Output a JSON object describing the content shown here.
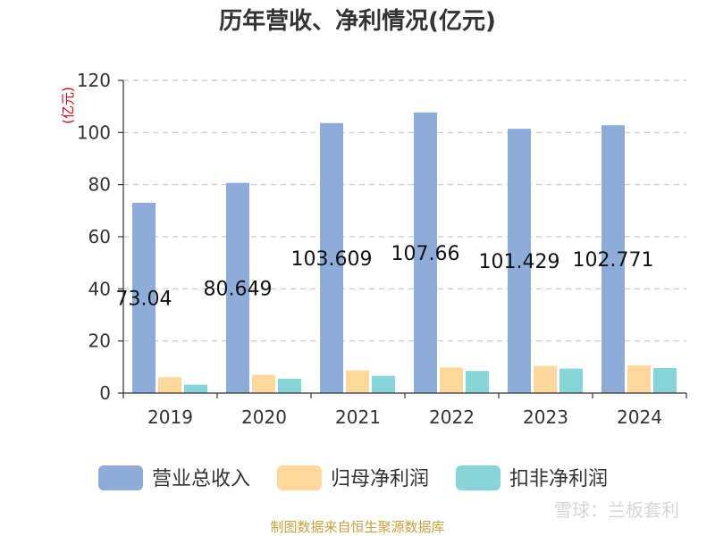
{
  "chart_data": {
    "type": "bar",
    "title": "历年营收、净利情况(亿元)",
    "ylabel": "(亿元)",
    "xlabel": "",
    "ylim": [
      0,
      120
    ],
    "yticks": [
      0,
      20,
      40,
      60,
      80,
      100,
      120
    ],
    "grid": true,
    "legend_position": "bottom",
    "categories": [
      "2019",
      "2020",
      "2021",
      "2022",
      "2023",
      "2024"
    ],
    "series": [
      {
        "name": "营业总收入",
        "color": "#8eacd9",
        "values": [
          73.04,
          80.649,
          103.609,
          107.66,
          101.429,
          102.771
        ]
      },
      {
        "name": "归母净利润",
        "color": "#fdd89a",
        "values": [
          6.1,
          7.0,
          8.7,
          9.8,
          10.4,
          10.6
        ]
      },
      {
        "name": "扣非净利润",
        "color": "#86d6d9",
        "values": [
          3.2,
          5.5,
          6.6,
          8.5,
          9.4,
          9.6
        ]
      }
    ],
    "data_labels": [
      "73.04",
      "80.649",
      "103.609",
      "107.66",
      "101.429",
      "102.771"
    ]
  },
  "footer": {
    "source": "制图数据来自恒生聚源数据库",
    "watermark": "雪球：兰板套利"
  }
}
